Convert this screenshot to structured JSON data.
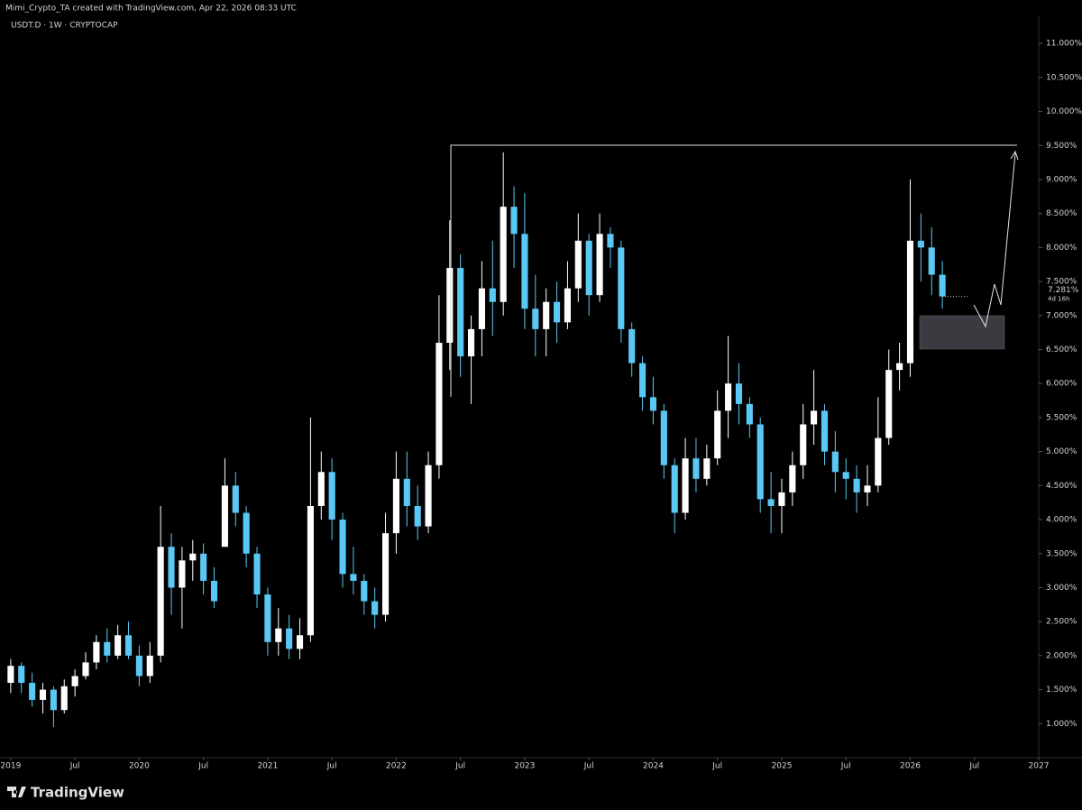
{
  "header": {
    "attribution": "Mimi_Crypto_TA created with TradingView.com, Apr 22, 2026 08:33 UTC"
  },
  "footer": {
    "brand": "TradingView"
  },
  "chart_data": {
    "type": "candlestick",
    "title": "USDT.D · 1W · CRYPTOCAP",
    "last_price_label": "7.281%",
    "countdown": "4d 16h",
    "up_color": "#ffffff",
    "down_color": "#5ac8f5",
    "xlim": [
      "2018-12",
      "2027-01"
    ],
    "xticks": [
      {
        "value": "2019-01",
        "label": "2019"
      },
      {
        "value": "2019-07",
        "label": "Jul"
      },
      {
        "value": "2020-01",
        "label": "2020"
      },
      {
        "value": "2020-07",
        "label": "Jul"
      },
      {
        "value": "2021-01",
        "label": "2021"
      },
      {
        "value": "2021-07",
        "label": "Jul"
      },
      {
        "value": "2022-01",
        "label": "2022"
      },
      {
        "value": "2022-07",
        "label": "Jul"
      },
      {
        "value": "2023-01",
        "label": "2023"
      },
      {
        "value": "2023-07",
        "label": "Jul"
      },
      {
        "value": "2024-01",
        "label": "2024"
      },
      {
        "value": "2024-07",
        "label": "Jul"
      },
      {
        "value": "2025-01",
        "label": "2025"
      },
      {
        "value": "2025-07",
        "label": "Jul"
      },
      {
        "value": "2026-01",
        "label": "2026"
      },
      {
        "value": "2026-07",
        "label": "Jul"
      },
      {
        "value": "2027-01",
        "label": "2027"
      }
    ],
    "ylim": [
      0.5,
      11.4
    ],
    "yticks": [
      {
        "value": 1,
        "label": "1.000%"
      },
      {
        "value": 1.5,
        "label": "1.500%"
      },
      {
        "value": 2,
        "label": "2.000%"
      },
      {
        "value": 2.5,
        "label": "2.500%"
      },
      {
        "value": 3,
        "label": "3.000%"
      },
      {
        "value": 3.5,
        "label": "3.500%"
      },
      {
        "value": 4,
        "label": "4.000%"
      },
      {
        "value": 4.5,
        "label": "4.500%"
      },
      {
        "value": 5,
        "label": "5.000%"
      },
      {
        "value": 5.5,
        "label": "5.500%"
      },
      {
        "value": 6,
        "label": "6.000%"
      },
      {
        "value": 6.5,
        "label": "6.500%"
      },
      {
        "value": 7,
        "label": "7.000%"
      },
      {
        "value": 7.5,
        "label": "7.500%"
      },
      {
        "value": 8,
        "label": "8.000%"
      },
      {
        "value": 8.5,
        "label": "8.500%"
      },
      {
        "value": 9,
        "label": "9.000%"
      },
      {
        "value": 9.5,
        "label": "9.500%"
      },
      {
        "value": 10,
        "label": "10.000%"
      },
      {
        "value": 10.5,
        "label": "10.500%"
      },
      {
        "value": 11,
        "label": "11.000%"
      }
    ],
    "x": [
      "2019-01",
      "2019-02",
      "2019-03",
      "2019-04",
      "2019-05",
      "2019-06",
      "2019-07",
      "2019-08",
      "2019-09",
      "2019-10",
      "2019-11",
      "2019-12",
      "2020-01",
      "2020-02",
      "2020-03",
      "2020-04",
      "2020-05",
      "2020-06",
      "2020-07",
      "2020-08",
      "2020-09",
      "2020-10",
      "2020-11",
      "2020-12",
      "2021-01",
      "2021-02",
      "2021-03",
      "2021-04",
      "2021-05",
      "2021-06",
      "2021-07",
      "2021-08",
      "2021-09",
      "2021-10",
      "2021-11",
      "2021-12",
      "2022-01",
      "2022-02",
      "2022-03",
      "2022-04",
      "2022-05",
      "2022-06",
      "2022-07",
      "2022-08",
      "2022-09",
      "2022-10",
      "2022-11",
      "2022-12",
      "2023-01",
      "2023-02",
      "2023-03",
      "2023-04",
      "2023-05",
      "2023-06",
      "2023-07",
      "2023-08",
      "2023-09",
      "2023-10",
      "2023-11",
      "2023-12",
      "2024-01",
      "2024-02",
      "2024-03",
      "2024-04",
      "2024-05",
      "2024-06",
      "2024-07",
      "2024-08",
      "2024-09",
      "2024-10",
      "2024-11",
      "2024-12",
      "2025-01",
      "2025-02",
      "2025-03",
      "2025-04",
      "2025-05",
      "2025-06",
      "2025-07",
      "2025-08",
      "2025-09",
      "2025-10",
      "2025-11",
      "2025-12",
      "2026-01",
      "2026-02",
      "2026-03",
      "2026-04"
    ],
    "open": [
      1.6,
      1.85,
      1.6,
      1.35,
      1.5,
      1.2,
      1.55,
      1.7,
      1.9,
      2.2,
      2.0,
      2.3,
      2.0,
      1.7,
      2.0,
      3.6,
      3.0,
      3.4,
      3.5,
      3.1,
      3.6,
      4.5,
      4.1,
      3.5,
      2.9,
      2.2,
      2.4,
      2.1,
      2.3,
      4.2,
      4.7,
      4.0,
      3.2,
      3.1,
      2.8,
      2.6,
      3.8,
      4.6,
      4.2,
      3.9,
      4.8,
      6.6,
      7.7,
      6.4,
      6.8,
      7.4,
      7.2,
      8.6,
      8.2,
      7.1,
      6.8,
      7.2,
      6.9,
      7.4,
      8.1,
      7.3,
      8.2,
      8.0,
      6.8,
      6.3,
      5.8,
      5.6,
      4.8,
      4.1,
      4.9,
      4.6,
      4.9,
      5.6,
      6.0,
      5.7,
      5.4,
      4.3,
      4.2,
      4.4,
      4.8,
      5.4,
      5.6,
      5.0,
      4.7,
      4.6,
      4.4,
      4.5,
      5.2,
      6.2,
      6.3,
      8.1,
      8.0,
      7.6
    ],
    "high": [
      1.95,
      1.9,
      1.75,
      1.6,
      1.55,
      1.65,
      1.8,
      2.05,
      2.3,
      2.4,
      2.45,
      2.5,
      2.15,
      2.2,
      4.2,
      3.8,
      3.6,
      3.7,
      3.65,
      3.3,
      4.9,
      4.7,
      4.2,
      3.6,
      3.0,
      2.7,
      2.6,
      2.55,
      5.5,
      5.0,
      4.9,
      4.1,
      3.6,
      3.2,
      3.0,
      4.1,
      5.0,
      5.0,
      4.5,
      5.0,
      7.3,
      8.4,
      7.9,
      7.0,
      7.8,
      8.1,
      9.4,
      8.9,
      8.8,
      7.6,
      7.4,
      7.5,
      7.8,
      8.5,
      8.2,
      8.5,
      8.3,
      8.1,
      6.9,
      6.4,
      6.1,
      5.7,
      4.9,
      5.2,
      5.2,
      5.1,
      5.9,
      6.7,
      6.3,
      5.8,
      5.5,
      4.7,
      4.6,
      5.0,
      5.7,
      6.2,
      5.7,
      5.3,
      4.9,
      4.8,
      4.8,
      5.8,
      6.5,
      6.6,
      9.0,
      8.5,
      8.3,
      7.8
    ],
    "low": [
      1.45,
      1.45,
      1.25,
      1.15,
      0.95,
      1.15,
      1.4,
      1.65,
      1.8,
      1.9,
      1.95,
      1.95,
      1.55,
      1.6,
      1.9,
      2.6,
      2.4,
      3.1,
      2.9,
      2.7,
      3.6,
      3.9,
      3.3,
      2.7,
      2.0,
      2.0,
      1.95,
      1.95,
      2.2,
      4.0,
      3.7,
      3.0,
      2.9,
      2.6,
      2.4,
      2.5,
      3.5,
      3.9,
      3.7,
      3.8,
      4.6,
      6.2,
      6.1,
      5.7,
      6.4,
      6.7,
      7.0,
      7.7,
      6.8,
      6.4,
      6.4,
      6.6,
      6.8,
      7.2,
      7.0,
      7.2,
      7.7,
      6.6,
      6.1,
      5.6,
      5.4,
      4.6,
      3.8,
      4.0,
      4.4,
      4.5,
      4.8,
      5.2,
      5.4,
      5.2,
      4.1,
      3.8,
      3.8,
      4.2,
      4.6,
      5.1,
      4.8,
      4.4,
      4.3,
      4.1,
      4.2,
      4.4,
      5.1,
      5.9,
      6.1,
      7.5,
      7.3,
      7.1
    ],
    "close": [
      1.85,
      1.6,
      1.35,
      1.5,
      1.2,
      1.55,
      1.7,
      1.9,
      2.2,
      2.0,
      2.3,
      2.0,
      1.7,
      2.0,
      3.6,
      3.0,
      3.4,
      3.5,
      3.1,
      2.8,
      4.5,
      4.1,
      3.5,
      2.9,
      2.2,
      2.4,
      2.1,
      2.3,
      4.2,
      4.7,
      4.0,
      3.2,
      3.1,
      2.8,
      2.6,
      3.8,
      4.6,
      4.2,
      3.9,
      4.8,
      6.6,
      7.7,
      6.4,
      6.8,
      7.4,
      7.2,
      8.6,
      8.2,
      7.1,
      6.8,
      7.2,
      6.9,
      7.4,
      8.1,
      7.3,
      8.2,
      8.0,
      6.8,
      6.3,
      5.8,
      5.6,
      4.8,
      4.1,
      4.9,
      4.6,
      4.9,
      5.6,
      6.0,
      5.7,
      5.4,
      4.3,
      4.2,
      4.4,
      4.8,
      5.4,
      5.6,
      5.0,
      4.7,
      4.6,
      4.4,
      4.5,
      5.2,
      6.2,
      6.3,
      8.1,
      8.0,
      7.6,
      7.281
    ]
  }
}
